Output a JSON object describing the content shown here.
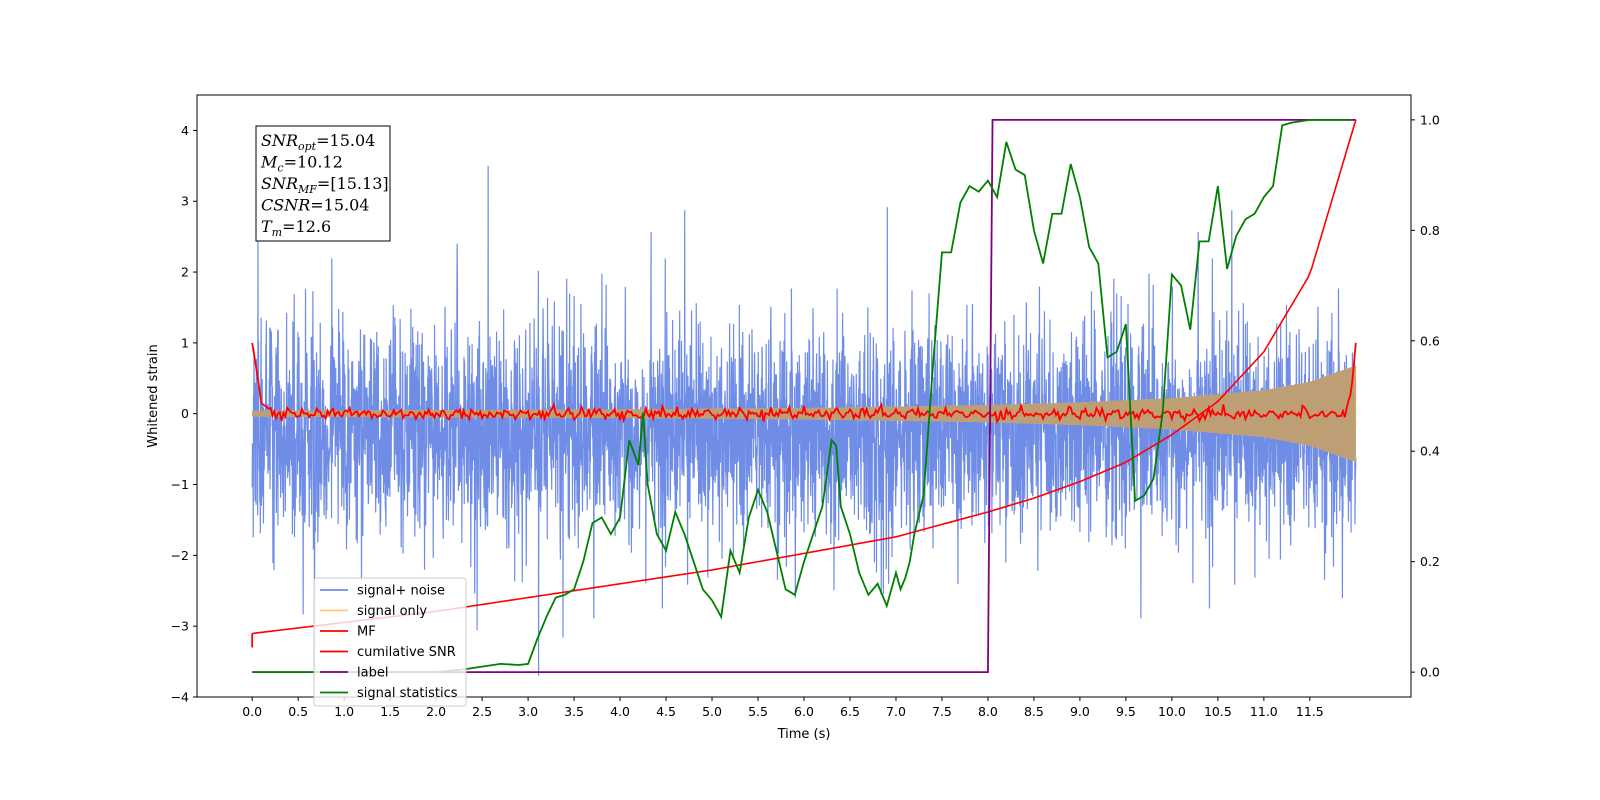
{
  "chart_data": {
    "type": "line",
    "xlabel": "Time (s)",
    "ylabel_left": "Whitened strain",
    "ylabel_right": "",
    "xlim": [
      -0.6,
      12.6
    ],
    "ylim_left": [
      -4.0,
      4.5
    ],
    "ylim_right": [
      -0.045,
      1.045
    ],
    "x_ticks": [
      "0.0",
      "0.5",
      "1.0",
      "1.5",
      "2.0",
      "2.5",
      "3.0",
      "3.5",
      "4.0",
      "4.5",
      "5.0",
      "5.5",
      "6.0",
      "6.5",
      "7.0",
      "7.5",
      "8.0",
      "8.5",
      "9.0",
      "9.5",
      "10.0",
      "10.5",
      "11.0",
      "11.5"
    ],
    "y_ticks_left": [
      "4",
      "3",
      "2",
      "1",
      "0",
      "−1",
      "−2",
      "−3",
      "−4"
    ],
    "y_ticks_right": [
      "1.0",
      "0.8",
      "0.6",
      "0.4",
      "0.2",
      "0.0"
    ],
    "grid": false,
    "legend_position": "lower-left",
    "legend": [
      {
        "label": "signal+ noise",
        "color": "#6f8de6"
      },
      {
        "label": "signal only",
        "color": "#ffc875"
      },
      {
        "label": "MF",
        "color": "#ff0000"
      },
      {
        "label": "cumilative SNR",
        "color": "#ff0000"
      },
      {
        "label": "label",
        "color": "#800080"
      },
      {
        "label": "signal statistics",
        "color": "#008000"
      }
    ],
    "annotation": [
      {
        "main": "SNR",
        "sub": "opt",
        "rest": "=15.04"
      },
      {
        "main": "M",
        "sub": "c",
        "rest": "=10.12"
      },
      {
        "main": "SNR",
        "sub": "MF",
        "rest": "=[15.13]"
      },
      {
        "main": "CSNR",
        "sub": "",
        "rest": "=15.04"
      },
      {
        "main": "T",
        "sub": "m",
        "rest": "=12.6"
      }
    ],
    "series": [
      {
        "name": "signal+ noise",
        "axis": "left",
        "color": "#6f8de6",
        "x_range": [
          0.0,
          12.0
        ],
        "envelope_typical": [
          -1.9,
          1.35
        ],
        "peak_max": 3.5,
        "peak_min": -3.7
      },
      {
        "name": "signal only",
        "axis": "left",
        "color": "#ffc875",
        "x_range": [
          0.0,
          12.0
        ],
        "amplitude_x": [
          0,
          2,
          4,
          6,
          8,
          9,
          10,
          11,
          11.5,
          12.0
        ],
        "amplitude_y": [
          0.04,
          0.05,
          0.06,
          0.08,
          0.12,
          0.16,
          0.22,
          0.33,
          0.45,
          0.68
        ]
      },
      {
        "name": "MF",
        "axis": "left",
        "color": "#ff0000",
        "x": [
          0.0,
          0.05,
          0.1,
          0.2,
          11.9,
          11.95,
          12.0
        ],
        "y": [
          1.0,
          0.6,
          0.15,
          0.05,
          0.1,
          0.3,
          1.0
        ],
        "jitter": 0.06
      },
      {
        "name": "cumilative SNR",
        "axis": "right",
        "color": "#ff0000",
        "x": [
          0,
          1,
          2,
          3,
          4,
          5,
          6,
          7,
          8,
          8.5,
          9,
          9.5,
          10,
          10.5,
          11,
          11.5,
          12.0
        ],
        "y": [
          0.07,
          0.09,
          0.11,
          0.135,
          0.16,
          0.185,
          0.215,
          0.245,
          0.29,
          0.315,
          0.345,
          0.38,
          0.43,
          0.49,
          0.58,
          0.72,
          1.0
        ]
      },
      {
        "name": "label",
        "axis": "right",
        "color": "#800080",
        "x": [
          0,
          8.0,
          8.05,
          12.0
        ],
        "y": [
          0.0,
          0.0,
          1.0,
          1.0
        ]
      },
      {
        "name": "signal statistics",
        "axis": "right",
        "color": "#008000",
        "x": [
          0,
          0.5,
          1.0,
          1.5,
          2.0,
          2.3,
          2.5,
          2.7,
          2.9,
          3.0,
          3.1,
          3.2,
          3.3,
          3.4,
          3.5,
          3.6,
          3.7,
          3.8,
          3.9,
          4.0,
          4.1,
          4.2,
          4.25,
          4.3,
          4.4,
          4.5,
          4.6,
          4.7,
          4.8,
          4.9,
          5.0,
          5.1,
          5.2,
          5.3,
          5.4,
          5.5,
          5.6,
          5.7,
          5.8,
          5.9,
          6.0,
          6.1,
          6.2,
          6.3,
          6.35,
          6.4,
          6.5,
          6.6,
          6.7,
          6.8,
          6.9,
          7.0,
          7.05,
          7.1,
          7.15,
          7.2,
          7.3,
          7.4,
          7.5,
          7.6,
          7.7,
          7.8,
          7.9,
          8.0,
          8.1,
          8.2,
          8.3,
          8.4,
          8.5,
          8.6,
          8.7,
          8.8,
          8.9,
          9.0,
          9.1,
          9.2,
          9.3,
          9.4,
          9.5,
          9.6,
          9.7,
          9.8,
          9.9,
          10.0,
          10.1,
          10.2,
          10.3,
          10.4,
          10.5,
          10.6,
          10.7,
          10.8,
          10.9,
          11.0,
          11.1,
          11.2,
          11.3,
          11.5,
          11.8,
          11.95
        ],
        "y": [
          0.0,
          0.0,
          0.0,
          0.0,
          0.0,
          0.005,
          0.01,
          0.015,
          0.013,
          0.015,
          0.06,
          0.1,
          0.135,
          0.14,
          0.15,
          0.2,
          0.27,
          0.28,
          0.25,
          0.28,
          0.42,
          0.375,
          0.47,
          0.34,
          0.25,
          0.22,
          0.29,
          0.25,
          0.2,
          0.15,
          0.13,
          0.1,
          0.22,
          0.18,
          0.28,
          0.33,
          0.29,
          0.22,
          0.15,
          0.14,
          0.2,
          0.25,
          0.3,
          0.42,
          0.41,
          0.3,
          0.25,
          0.18,
          0.14,
          0.16,
          0.12,
          0.18,
          0.15,
          0.17,
          0.2,
          0.25,
          0.32,
          0.55,
          0.76,
          0.76,
          0.85,
          0.88,
          0.87,
          0.89,
          0.86,
          0.96,
          0.91,
          0.9,
          0.8,
          0.74,
          0.83,
          0.83,
          0.92,
          0.86,
          0.77,
          0.74,
          0.57,
          0.58,
          0.63,
          0.31,
          0.32,
          0.35,
          0.47,
          0.72,
          0.7,
          0.62,
          0.78,
          0.78,
          0.88,
          0.73,
          0.79,
          0.82,
          0.83,
          0.86,
          0.88,
          0.99,
          0.995,
          1.0,
          1.0,
          1.0
        ]
      }
    ]
  }
}
